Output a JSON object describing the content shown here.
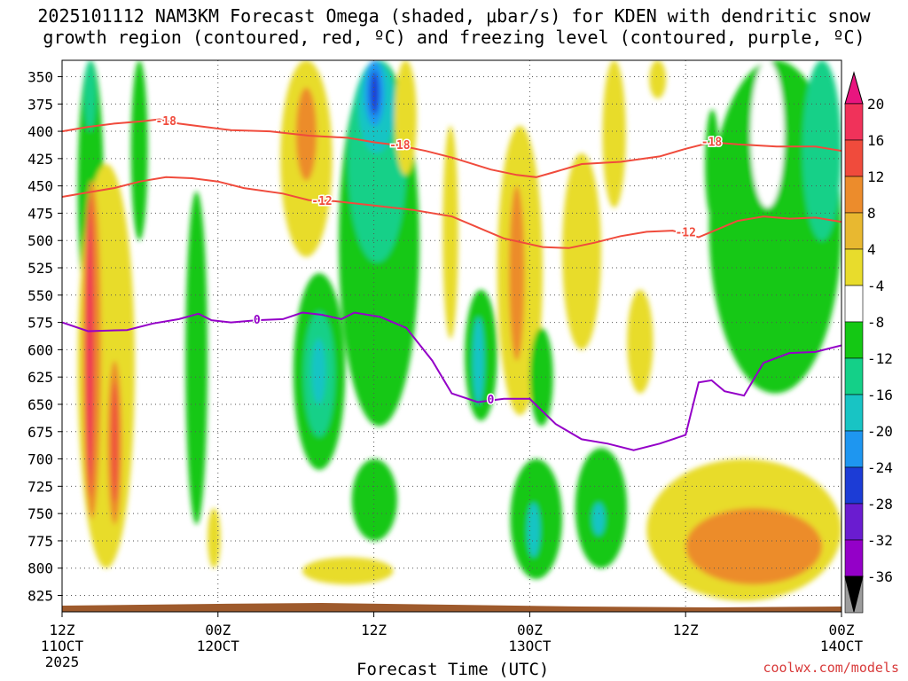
{
  "chart_data": {
    "type": "heatmap",
    "title_line1": "2025101112 NAM3KM Forecast Omega (shaded, μbar/s) for KDEN with dendritic snow",
    "title_line2": "growth region (contoured, red, ºC) and freezing level (contoured, purple, ºC)",
    "xlabel": "Forecast Time (UTC)",
    "credit": "coolwx.com/models",
    "x_hours_range": [
      0,
      60
    ],
    "y_pressure_range": [
      335,
      840
    ],
    "y_ticks": [
      350,
      375,
      400,
      425,
      450,
      475,
      500,
      525,
      550,
      575,
      600,
      625,
      650,
      675,
      700,
      725,
      750,
      775,
      800,
      825
    ],
    "x_ticks": [
      {
        "hour": 0,
        "top": "12Z",
        "bottom": "11OCT",
        "extra": "2025"
      },
      {
        "hour": 12,
        "top": "00Z",
        "bottom": "12OCT",
        "extra": ""
      },
      {
        "hour": 24,
        "top": "12Z",
        "bottom": "",
        "extra": ""
      },
      {
        "hour": 36,
        "top": "00Z",
        "bottom": "13OCT",
        "extra": ""
      },
      {
        "hour": 48,
        "top": "12Z",
        "bottom": "",
        "extra": ""
      },
      {
        "hour": 60,
        "top": "00Z",
        "bottom": "14OCT",
        "extra": ""
      }
    ],
    "colorbar": {
      "colors": [
        "#9c9c9c",
        "#9400c8",
        "#6a1cd0",
        "#1c3cd6",
        "#1e96f0",
        "#18c4c4",
        "#14d088",
        "#14c814",
        "#ffffff",
        "#e8dc2c",
        "#e8b830",
        "#ec8c2c",
        "#f04b3c",
        "#f0325a",
        "#e8157f"
      ],
      "labels": [
        -36,
        -32,
        -28,
        -24,
        -20,
        -16,
        -12,
        -8,
        -4,
        4,
        8,
        12,
        16,
        20
      ],
      "bottom_color": "#000000"
    },
    "omega_regions": [
      {
        "name": "green-upper-left",
        "color": "#14c814",
        "h": [
          1.2,
          3.2
        ],
        "p": [
          335,
          570
        ]
      },
      {
        "name": "green-upper-left-core",
        "color": "#14d088",
        "h": [
          1.7,
          2.6
        ],
        "p": [
          335,
          400
        ]
      },
      {
        "name": "yellow-left",
        "color": "#e8dc2c",
        "h": [
          1.2,
          5.6
        ],
        "p": [
          430,
          800
        ]
      },
      {
        "name": "orange-left",
        "color": "#ec8c2c",
        "h": [
          1.6,
          3.0
        ],
        "p": [
          445,
          755
        ]
      },
      {
        "name": "red-left",
        "color": "#f04b3c",
        "h": [
          1.8,
          2.5
        ],
        "p": [
          460,
          735
        ]
      },
      {
        "name": "pink-left",
        "color": "#f0325a",
        "h": [
          1.9,
          2.3
        ],
        "p": [
          480,
          715
        ]
      },
      {
        "name": "orange-left-2",
        "color": "#ec8c2c",
        "h": [
          3.5,
          4.6
        ],
        "p": [
          610,
          760
        ]
      },
      {
        "name": "red-left-2",
        "color": "#f04b3c",
        "h": [
          3.8,
          4.3
        ],
        "p": [
          630,
          740
        ]
      },
      {
        "name": "green-upper-mid",
        "color": "#14c814",
        "h": [
          5.3,
          6.6
        ],
        "p": [
          335,
          500
        ]
      },
      {
        "name": "green-col-9",
        "color": "#14c814",
        "h": [
          9.5,
          11.2
        ],
        "p": [
          455,
          760
        ]
      },
      {
        "name": "yellow-12",
        "color": "#e8dc2c",
        "h": [
          11.2,
          12.2
        ],
        "p": [
          745,
          800
        ]
      },
      {
        "name": "yellow-18",
        "color": "#e8dc2c",
        "h": [
          16.8,
          20.8
        ],
        "p": [
          335,
          515
        ]
      },
      {
        "name": "orange-18",
        "color": "#ec8c2c",
        "h": [
          18.0,
          19.6
        ],
        "p": [
          360,
          445
        ]
      },
      {
        "name": "green-20",
        "color": "#14c814",
        "h": [
          17.8,
          21.8
        ],
        "p": [
          530,
          710
        ]
      },
      {
        "name": "teal-20",
        "color": "#14d088",
        "h": [
          18.6,
          21.0
        ],
        "p": [
          565,
          680
        ]
      },
      {
        "name": "cyan-20",
        "color": "#18c4c4",
        "h": [
          19.2,
          20.3
        ],
        "p": [
          590,
          650
        ]
      },
      {
        "name": "green-main",
        "color": "#14c814",
        "h": [
          21.3,
          27.5
        ],
        "p": [
          335,
          670
        ]
      },
      {
        "name": "teal-main",
        "color": "#14d088",
        "h": [
          22.0,
          26.5
        ],
        "p": [
          335,
          520
        ]
      },
      {
        "name": "cyan-main",
        "color": "#18c4c4",
        "h": [
          22.8,
          25.6
        ],
        "p": [
          335,
          420
        ]
      },
      {
        "name": "blue-main",
        "color": "#1e96f0",
        "h": [
          23.3,
          24.8
        ],
        "p": [
          335,
          395
        ]
      },
      {
        "name": "deepblue-main",
        "color": "#1c3cd6",
        "h": [
          23.7,
          24.4
        ],
        "p": [
          345,
          385
        ]
      },
      {
        "name": "yellow-main-side",
        "color": "#e8dc2c",
        "h": [
          25.6,
          27.3
        ],
        "p": [
          335,
          440
        ]
      },
      {
        "name": "yellow-29",
        "color": "#e8dc2c",
        "h": [
          29.3,
          30.5
        ],
        "p": [
          395,
          590
        ]
      },
      {
        "name": "green-22-low",
        "color": "#14c814",
        "h": [
          22.3,
          25.8
        ],
        "p": [
          700,
          775
        ]
      },
      {
        "name": "yellow-low-mid",
        "color": "#e8dc2c",
        "h": [
          18.5,
          25.5
        ],
        "p": [
          790,
          815
        ]
      },
      {
        "name": "green-31",
        "color": "#14c814",
        "h": [
          31.0,
          33.5
        ],
        "p": [
          545,
          665
        ]
      },
      {
        "name": "cyan-31",
        "color": "#18c4c4",
        "h": [
          31.6,
          32.5
        ],
        "p": [
          570,
          650
        ]
      },
      {
        "name": "yellow-34",
        "color": "#e8dc2c",
        "h": [
          33.5,
          37.0
        ],
        "p": [
          395,
          660
        ]
      },
      {
        "name": "orange-34",
        "color": "#ec8c2c",
        "h": [
          34.4,
          35.6
        ],
        "p": [
          450,
          610
        ]
      },
      {
        "name": "yellow-38",
        "color": "#e8dc2c",
        "h": [
          38.5,
          41.5
        ],
        "p": [
          420,
          600
        ]
      },
      {
        "name": "green-37",
        "color": "#14c814",
        "h": [
          36.0,
          37.8
        ],
        "p": [
          580,
          670
        ]
      },
      {
        "name": "green-35-low",
        "color": "#14c814",
        "h": [
          34.5,
          38.5
        ],
        "p": [
          700,
          810
        ]
      },
      {
        "name": "cyan-35-low",
        "color": "#18c4c4",
        "h": [
          35.8,
          36.8
        ],
        "p": [
          740,
          790
        ]
      },
      {
        "name": "green-40-low",
        "color": "#14c814",
        "h": [
          39.5,
          43.5
        ],
        "p": [
          690,
          800
        ]
      },
      {
        "name": "cyan-41-low",
        "color": "#18c4c4",
        "h": [
          40.8,
          41.8
        ],
        "p": [
          740,
          770
        ]
      },
      {
        "name": "yellow-42",
        "color": "#e8dc2c",
        "h": [
          41.6,
          43.4
        ],
        "p": [
          335,
          470
        ]
      },
      {
        "name": "yellow-45-top",
        "color": "#e8dc2c",
        "h": [
          45.2,
          46.5
        ],
        "p": [
          335,
          370
        ]
      },
      {
        "name": "yellow-44",
        "color": "#e8dc2c",
        "h": [
          43.5,
          45.5
        ],
        "p": [
          545,
          640
        ]
      },
      {
        "name": "green-50",
        "color": "#14c814",
        "h": [
          49.5,
          50.6
        ],
        "p": [
          380,
          480
        ]
      },
      {
        "name": "green-right",
        "color": "#14c814",
        "h": [
          49.8,
          60.0
        ],
        "p": [
          335,
          640
        ]
      },
      {
        "name": "teal-right",
        "color": "#14d088",
        "h": [
          57.0,
          60.0
        ],
        "p": [
          335,
          500
        ]
      },
      {
        "name": "green-right-hole",
        "color": "#ffffff",
        "h": [
          53.0,
          55.6
        ],
        "p": [
          335,
          470
        ]
      },
      {
        "name": "yellow-low-right",
        "color": "#e8dc2c",
        "h": [
          45.0,
          60.0
        ],
        "p": [
          700,
          830
        ]
      },
      {
        "name": "orange-low-right",
        "color": "#ec8c2c",
        "h": [
          48.0,
          58.5
        ],
        "p": [
          745,
          815
        ]
      }
    ],
    "contours": [
      {
        "label": "-18",
        "color": "#f04b3c",
        "points": [
          [
            0,
            400
          ],
          [
            2,
            396
          ],
          [
            4,
            393
          ],
          [
            6,
            391
          ],
          [
            7.5,
            389
          ],
          [
            9,
            393
          ],
          [
            11,
            396
          ],
          [
            13,
            399
          ],
          [
            16,
            400
          ],
          [
            19,
            404
          ],
          [
            22,
            406
          ],
          [
            24,
            410
          ],
          [
            26,
            413
          ],
          [
            28,
            418
          ],
          [
            30,
            424
          ],
          [
            33,
            435
          ],
          [
            35,
            440
          ],
          [
            36.5,
            442
          ],
          [
            38,
            437
          ],
          [
            40,
            430
          ],
          [
            43,
            428
          ],
          [
            46,
            423
          ],
          [
            48,
            416
          ],
          [
            50,
            410
          ],
          [
            52,
            412
          ],
          [
            55,
            414
          ],
          [
            58,
            414
          ],
          [
            60,
            418
          ]
        ],
        "labels_at": [
          [
            8,
            391
          ],
          [
            26,
            413
          ],
          [
            50,
            410
          ]
        ]
      },
      {
        "label": "-12",
        "color": "#f04b3c",
        "points": [
          [
            0,
            460
          ],
          [
            2,
            456
          ],
          [
            4,
            452
          ],
          [
            6,
            446
          ],
          [
            8,
            442
          ],
          [
            10,
            443
          ],
          [
            12,
            446
          ],
          [
            14,
            452
          ],
          [
            17,
            457
          ],
          [
            19,
            463
          ],
          [
            21,
            464
          ],
          [
            24,
            468
          ],
          [
            27,
            472
          ],
          [
            30,
            478
          ],
          [
            32,
            488
          ],
          [
            34,
            498
          ],
          [
            37,
            506
          ],
          [
            39,
            507
          ],
          [
            41,
            502
          ],
          [
            43,
            496
          ],
          [
            45,
            492
          ],
          [
            47,
            491
          ],
          [
            49,
            497
          ],
          [
            50,
            492
          ],
          [
            52,
            482
          ],
          [
            54,
            478
          ],
          [
            56,
            480
          ],
          [
            58,
            479
          ],
          [
            60,
            483
          ]
        ],
        "labels_at": [
          [
            20,
            464
          ],
          [
            48,
            493
          ]
        ]
      },
      {
        "label": "0",
        "color": "#9400c8",
        "points": [
          [
            0,
            575
          ],
          [
            2,
            583
          ],
          [
            5,
            582
          ],
          [
            7,
            576
          ],
          [
            9,
            572
          ],
          [
            10.5,
            567
          ],
          [
            11.5,
            573
          ],
          [
            13,
            575
          ],
          [
            15,
            573
          ],
          [
            17,
            572
          ],
          [
            18.5,
            566
          ],
          [
            20,
            568
          ],
          [
            21.5,
            572
          ],
          [
            22.5,
            566
          ],
          [
            24.5,
            570
          ],
          [
            26.5,
            580
          ],
          [
            28.5,
            610
          ],
          [
            30,
            640
          ],
          [
            32,
            648
          ],
          [
            34,
            645
          ],
          [
            36,
            645
          ],
          [
            38,
            668
          ],
          [
            40,
            682
          ],
          [
            42,
            686
          ],
          [
            44,
            692
          ],
          [
            46,
            686
          ],
          [
            48,
            678
          ],
          [
            49,
            630
          ],
          [
            50,
            628
          ],
          [
            51,
            638
          ],
          [
            52.5,
            642
          ],
          [
            54,
            612
          ],
          [
            56,
            603
          ],
          [
            58,
            602
          ],
          [
            60,
            596
          ]
        ],
        "labels_at": [
          [
            15,
            573
          ],
          [
            33,
            646
          ]
        ]
      }
    ],
    "terrain_color": "#9e5a2c"
  }
}
